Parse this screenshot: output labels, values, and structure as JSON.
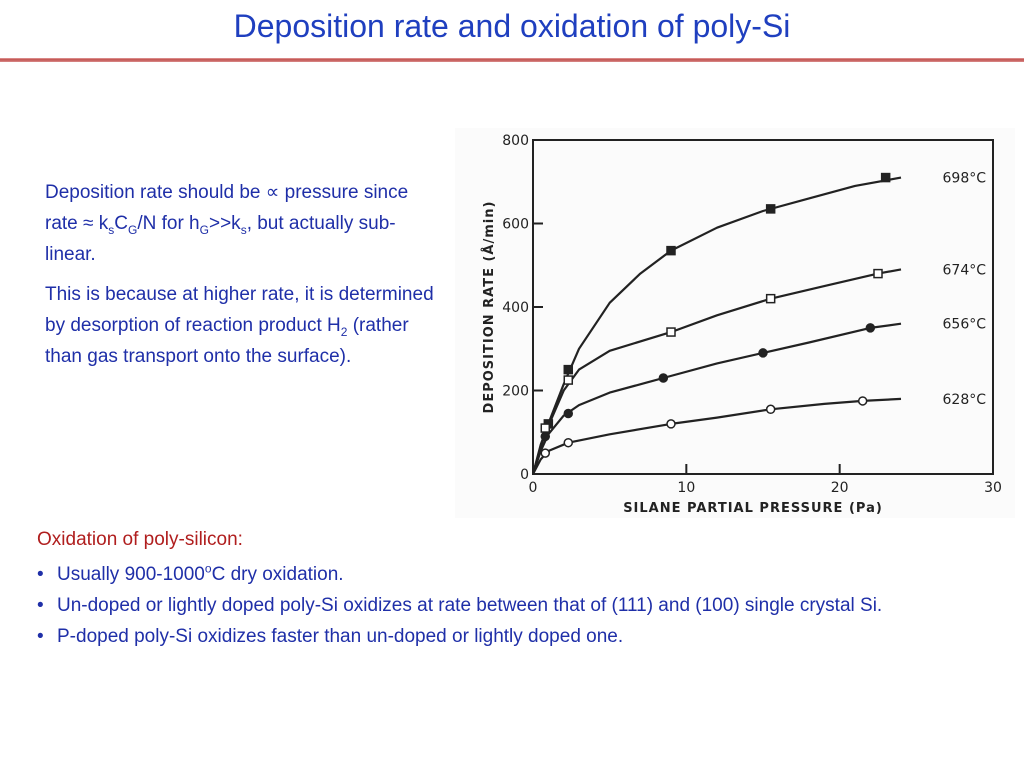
{
  "slide": {
    "title": "Deposition rate and oxidation of  poly-Si",
    "para1": {
      "t1": "Deposition rate should be ",
      "prop": "∝",
      "t2": " pressure since rate ",
      "approx": "≈",
      "t3": " k",
      "sub_s": "s",
      "t4": "C",
      "sub_G": "G",
      "t5": "/N for h",
      "sub_G2": "G",
      "t6": ">>k",
      "sub_s2": "s",
      "t7": ", but actually sub-linear."
    },
    "para2": {
      "t1": "This is because at higher rate, it is determined by desorption of reaction product H",
      "sub2": "2",
      "t2": " (rather than gas transport onto the surface)."
    },
    "oxidation": {
      "heading": "Oxidation of poly-silicon:",
      "b1_pre": "Usually 900-1000",
      "b1_sup": "o",
      "b1_post": "C dry oxidation.",
      "b2": "Un-doped or lightly doped poly-Si oxidizes at rate between that of (111) and (100) single crystal Si.",
      "b3": "P-doped poly-Si oxidizes faster than un-doped or lightly doped one."
    }
  },
  "chart_data": {
    "type": "line",
    "xlabel": "SILANE PARTIAL PRESSURE (Pa)",
    "ylabel": "DEPOSITION RATE (Å/min)",
    "xlim": [
      0,
      30
    ],
    "ylim": [
      0,
      800
    ],
    "x_ticks": [
      0,
      10,
      20,
      30
    ],
    "y_ticks": [
      0,
      200,
      400,
      600,
      800
    ],
    "grid": false,
    "series": [
      {
        "name": "698°C",
        "marker": "filled-square",
        "points": [
          [
            1,
            120
          ],
          [
            2.3,
            250
          ],
          [
            9,
            535
          ],
          [
            15.5,
            635
          ],
          [
            23,
            710
          ]
        ],
        "curve": [
          [
            0,
            0
          ],
          [
            0.5,
            70
          ],
          [
            1,
            120
          ],
          [
            2,
            215
          ],
          [
            3,
            300
          ],
          [
            5,
            410
          ],
          [
            7,
            480
          ],
          [
            9,
            535
          ],
          [
            12,
            590
          ],
          [
            15,
            630
          ],
          [
            18,
            660
          ],
          [
            21,
            690
          ],
          [
            24,
            710
          ]
        ]
      },
      {
        "name": "674°C",
        "marker": "open-square",
        "points": [
          [
            0.8,
            110
          ],
          [
            2.3,
            225
          ],
          [
            9,
            340
          ],
          [
            15.5,
            420
          ],
          [
            22.5,
            480
          ]
        ],
        "curve": [
          [
            0,
            0
          ],
          [
            0.5,
            65
          ],
          [
            1,
            115
          ],
          [
            2,
            200
          ],
          [
            3,
            250
          ],
          [
            5,
            295
          ],
          [
            9,
            340
          ],
          [
            12,
            380
          ],
          [
            15.5,
            420
          ],
          [
            19,
            450
          ],
          [
            22.5,
            480
          ],
          [
            24,
            490
          ]
        ]
      },
      {
        "name": "656°C",
        "marker": "filled-circle",
        "points": [
          [
            0.8,
            90
          ],
          [
            2.3,
            145
          ],
          [
            8.5,
            230
          ],
          [
            15,
            290
          ],
          [
            22,
            350
          ]
        ],
        "curve": [
          [
            0,
            0
          ],
          [
            0.5,
            55
          ],
          [
            1,
            95
          ],
          [
            2,
            140
          ],
          [
            3,
            165
          ],
          [
            5,
            195
          ],
          [
            8.5,
            230
          ],
          [
            12,
            265
          ],
          [
            15,
            290
          ],
          [
            18,
            315
          ],
          [
            22,
            350
          ],
          [
            24,
            360
          ]
        ]
      },
      {
        "name": "628°C",
        "marker": "open-circle",
        "points": [
          [
            0.8,
            50
          ],
          [
            2.3,
            75
          ],
          [
            9,
            120
          ],
          [
            15.5,
            155
          ],
          [
            21.5,
            175
          ]
        ],
        "curve": [
          [
            0,
            0
          ],
          [
            0.5,
            35
          ],
          [
            1,
            55
          ],
          [
            2.3,
            75
          ],
          [
            5,
            95
          ],
          [
            9,
            120
          ],
          [
            12,
            135
          ],
          [
            15.5,
            155
          ],
          [
            19,
            168
          ],
          [
            21.5,
            175
          ],
          [
            24,
            180
          ]
        ]
      }
    ]
  }
}
